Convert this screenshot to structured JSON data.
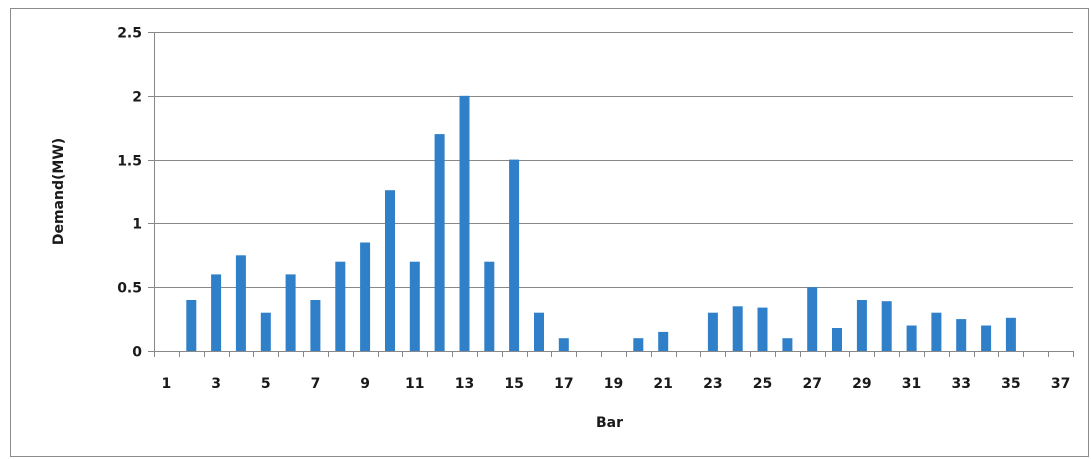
{
  "chart_data": {
    "type": "bar",
    "title": "",
    "xlabel": "Bar",
    "ylabel": "Demand(MW)",
    "ylim": [
      0,
      2.5
    ],
    "y_ticks": [
      "0",
      "0.5",
      "1",
      "1.5",
      "2",
      "2.5"
    ],
    "y_tick_values": [
      0,
      0.5,
      1,
      1.5,
      2,
      2.5
    ],
    "x_tick_labels": [
      "1",
      "3",
      "5",
      "7",
      "9",
      "11",
      "13",
      "15",
      "17",
      "19",
      "21",
      "23",
      "25",
      "27",
      "29",
      "31",
      "33",
      "35",
      "37"
    ],
    "categories": [
      1,
      2,
      3,
      4,
      5,
      6,
      7,
      8,
      9,
      10,
      11,
      12,
      13,
      14,
      15,
      16,
      17,
      18,
      19,
      20,
      21,
      22,
      23,
      24,
      25,
      26,
      27,
      28,
      29,
      30,
      31,
      32,
      33,
      34,
      35,
      36,
      37
    ],
    "values": [
      0,
      0.4,
      0.6,
      0.75,
      0.3,
      0.6,
      0.4,
      0.7,
      0.85,
      1.26,
      0.7,
      1.7,
      2.0,
      0.7,
      1.5,
      0.3,
      0.1,
      0,
      0,
      0.1,
      0.15,
      0,
      0.3,
      0.35,
      0.34,
      0.1,
      0.5,
      0.18,
      0.4,
      0.39,
      0.2,
      0.3,
      0.25,
      0.2,
      0.26,
      0,
      0
    ],
    "grid": true,
    "legend": "none",
    "bar_color": "#2f80c8"
  }
}
